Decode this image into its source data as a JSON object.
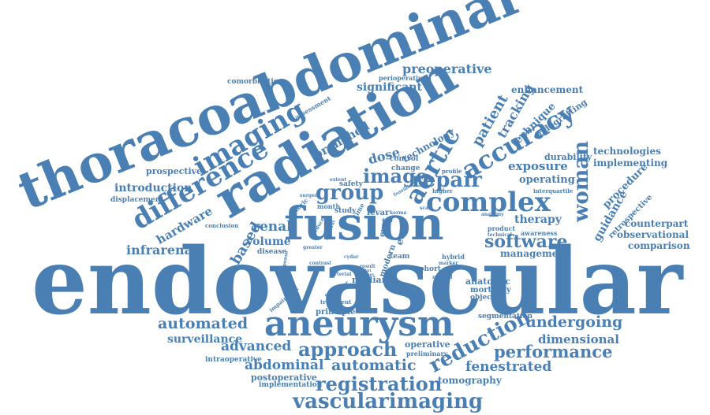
{
  "colors": {
    "word": "#4a7fb3",
    "background": "#ffffff"
  },
  "words": {
    "endovascular": "endovascular",
    "thoracoabdominal": "thoracoabdominal",
    "radiation": "radiation",
    "fusion": "fusion",
    "aneurysm": "aneurysm",
    "imaging": "imaging",
    "difference": "difference",
    "complex": "complex",
    "accuracy": "accuracy",
    "aortic": "aortic",
    "repair": "repair",
    "group": "group",
    "image": "image",
    "woman": "woman",
    "software": "software",
    "reduction": "reduction",
    "approach": "approach",
    "registration": "registration",
    "vascularimaging": "vascularimaging",
    "automated": "automated",
    "automatic": "automatic",
    "performance": "performance",
    "undergoing": "undergoing",
    "advanced": "advanced",
    "abdominal": "abdominal",
    "fenestrated": "fenestrated",
    "dimensional": "dimensional",
    "infrarenal": "infrarenal",
    "preoperative": "preoperative",
    "significant": "significant",
    "branched": "branched",
    "introduction": "introduction",
    "prospective": "prospective",
    "hardware": "hardware",
    "based": "based",
    "renal": "renal",
    "volume": "volume",
    "dose": "dose",
    "technology": "technology",
    "patient": "patient",
    "tracking": "tracking",
    "technique": "technique",
    "enhancement": "enhancement",
    "endografting": "endografting",
    "exposure": "exposure",
    "operating": "operating",
    "durability": "durability",
    "technologies": "technologies",
    "implementing": "implementing",
    "procedure": "procedure",
    "guidance": "guidance",
    "retrospective": "retrospective",
    "therapy": "therapy",
    "counterpart": "counterpart",
    "observational": "observational",
    "comparison": "comparison",
    "management": "management",
    "surveillance": "surveillance",
    "tomography": "tomography",
    "postoperative": "postoperative",
    "implementation": "implementation",
    "intraoperative": "intraoperative",
    "operative": "operative",
    "preliminary": "preliminary",
    "principle": "principle",
    "segmentation": "segmentation",
    "anatomic": "anatomic",
    "mortality": "mortality",
    "objective": "objective",
    "comorbidities": "comorbidities",
    "assessment": "assessment",
    "displacement": "displacement",
    "perioperative": "perioperative",
    "control": "control",
    "change": "change",
    "safety": "safety",
    "month": "month",
    "study": "study",
    "fevar": "fevar",
    "evar": "evar",
    "error": "error",
    "team": "team",
    "cohort": "cohort",
    "hybrid": "hybrid",
    "median": "median",
    "modern": "modern",
    "disease": "disease",
    "conclusion": "conclusion",
    "historic": "historic",
    "impairment": "impairment",
    "operator": "operator",
    "treatment": "treatment",
    "awareness": "awareness",
    "product": "product",
    "technical": "technical",
    "interquartile": "interquartile",
    "profile": "profile",
    "higher": "higher",
    "feasible": "feasible",
    "surgery": "surgery",
    "extent": "extent",
    "kerma": "kerma",
    "year": "year",
    "standard": "standard",
    "method": "method",
    "greater": "greater",
    "contrast": "contrast",
    "response": "response",
    "time": "time",
    "scan": "scan",
    "marker": "marker",
    "anatomy": "anatomy",
    "result": "result",
    "point": "point",
    "kidney": "kidney",
    "arterial": "arterial",
    "reduce": "reduce",
    "survival": "survival",
    "cydar": "cydar"
  }
}
